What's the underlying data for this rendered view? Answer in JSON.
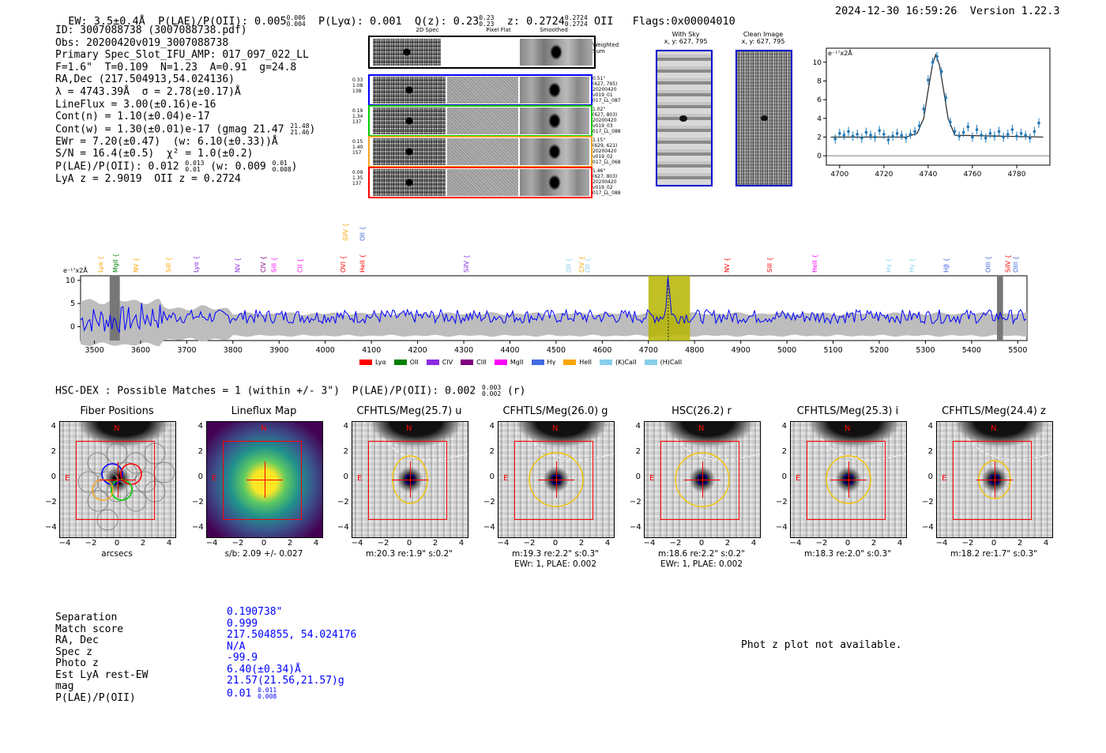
{
  "header": {
    "ew": "EW: 3.5±0.4Å",
    "plae_label": "P(LAE)/P(OII): 0.005",
    "plae_hi": "0.006",
    "plae_lo": "0.004",
    "plya": "P(Lyα): 0.001",
    "qz_label": "Q(z): 0.23",
    "qz_hi": "0.23",
    "qz_lo": "0.23",
    "z_label": "z: 0.2724",
    "z_hi": "0.2724",
    "z_lo": "0.2724",
    "z_line": "OII",
    "flags": "Flags:0x00004010",
    "timestamp": "2024-12-30 16:59:26",
    "version": "Version 1.22.3"
  },
  "info": {
    "id": "ID: 3007088738 (3007088738.pdf)",
    "obs": "Obs: 20200420v019_3007088738",
    "primary": "Primary Spec_Slot_IFU_AMP: 017_097_022_LL",
    "fshape": "F=1.6\"  T=0.109  N=1.23  A=0.91  g=24.8",
    "radec": "RA,Dec (217.504913,54.024136)",
    "lambda": "λ = 4743.39Å  σ = 2.78(±0.17)Å",
    "lineflux": "LineFlux = 3.00(±0.16)e-16",
    "contn": "Cont(n) = 1.10(±0.04)e-17",
    "contw": "Cont(w) = 1.30(±0.01)e-17 (gmag 21.47",
    "contw_hi": "21.48",
    "contw_lo": "21.46",
    "contw_end": ")",
    "ewr": "EWr = 7.20(±0.47)  (w: 6.10(±0.33))Å",
    "sn": "S/N = 16.4(±0.5)  χ² = 1.0(±0.2)",
    "plae": "P(LAE)/P(OII): 0.012",
    "plae_hi": "0.013",
    "plae_lo": "0.01",
    "plae_w": "(w: 0.009",
    "plae_w_hi": "0.01",
    "plae_w_lo": "0.008",
    "plae_end": ")",
    "lya_z": "LyA z = 2.9019  OII z = 0.2724"
  },
  "cutouts": {
    "col_headers": [
      "2D Spec",
      "Pixel Flat",
      "Smoothed"
    ],
    "weighted_sum": "Weighted Sum",
    "rows": [
      {
        "left": "0.33\n1.08\n138",
        "right": "0.51\"\n(627, 795)\n20200420\nv019_01\n017_LL_087",
        "color": "#0000ff"
      },
      {
        "left": "0.19\n1.34\n137",
        "right": "1.02\"\n(627, 803)\n20200420\nv019_03\n017_LL_088",
        "color": "#00cc00"
      },
      {
        "left": "0.15\n1.40\n157",
        "right": "1.15\"\n(629, 621)\n20200420\nv019_02\n017_LL_068",
        "color": "#f5a623"
      },
      {
        "left": "0.09\n1.35\n137",
        "right": "1.46\"\n(627, 803)\n20200420\nv019_02\n017_LL_088",
        "color": "#ff0000"
      }
    ],
    "with_sky": "With Sky",
    "with_sky_xy": "x, y: 627, 795",
    "clean": "Clean Image",
    "clean_xy": "x, y: 627, 795"
  },
  "chart_data": [
    {
      "type": "line",
      "title": "",
      "ylabel": "e⁻¹⁷x2Å",
      "xlabel": "",
      "xlim": [
        4694,
        4795
      ],
      "ylim": [
        -1,
        11.5
      ],
      "xticks": [
        4700,
        4720,
        4740,
        4760,
        4780
      ],
      "yticks": [
        0,
        2,
        4,
        6,
        8,
        10
      ],
      "series": [
        {
          "name": "fit",
          "x": [
            4696,
            4730,
            4735,
            4738,
            4740,
            4742,
            4743.4,
            4745,
            4747,
            4749,
            4752,
            4792
          ],
          "y": [
            2,
            2,
            2.4,
            4,
            7,
            9.8,
            10.8,
            9.8,
            7,
            4,
            2.2,
            2
          ]
        },
        {
          "name": "data",
          "x": [
            4698,
            4700,
            4702,
            4704,
            4706,
            4708,
            4710,
            4712,
            4714,
            4716,
            4718,
            4720,
            4722,
            4724,
            4726,
            4728,
            4730,
            4732,
            4734,
            4736,
            4738,
            4740,
            4742,
            4744,
            4746,
            4748,
            4750,
            4752,
            4754,
            4756,
            4758,
            4760,
            4762,
            4764,
            4766,
            4768,
            4770,
            4772,
            4774,
            4776,
            4778,
            4780,
            4782,
            4784,
            4786,
            4788,
            4790
          ],
          "y": [
            1.8,
            2.4,
            2.2,
            2.6,
            2.1,
            2.3,
            1.9,
            2.5,
            2.2,
            2.0,
            2.7,
            2.3,
            1.7,
            2.1,
            2.4,
            2.2,
            1.9,
            2.3,
            2.6,
            3.2,
            5.0,
            8.1,
            10.0,
            10.6,
            9.0,
            6.2,
            3.6,
            2.6,
            2.1,
            2.5,
            3.1,
            2.0,
            2.8,
            2.2,
            1.9,
            2.4,
            2.1,
            2.6,
            2.0,
            2.3,
            2.8,
            2.1,
            2.4,
            2.2,
            1.9,
            2.6,
            3.5
          ]
        }
      ]
    },
    {
      "type": "line",
      "ylabel": "e⁻¹⁷x2Å",
      "xlim": [
        3470,
        5520
      ],
      "ylim": [
        -3,
        11
      ],
      "xticks": [
        3500,
        3600,
        3700,
        3800,
        3900,
        4000,
        4100,
        4200,
        4300,
        4400,
        4500,
        4600,
        4700,
        4800,
        4900,
        5000,
        5100,
        5200,
        5300,
        5400,
        5500
      ],
      "yticks": [
        0,
        5,
        10
      ],
      "highlight_range": [
        4700,
        4790
      ],
      "line_marker": 4743,
      "legend": [
        "Lyα",
        "OII",
        "CIV",
        "CIII",
        "MgII",
        "Hγ",
        "HeII",
        "(K)CaII",
        "(H)CaII"
      ],
      "legend_colors": [
        "#ff0000",
        "#008000",
        "#8a2be2",
        "#800080",
        "#ff00ff",
        "#4169e1",
        "#ffa500",
        "#87ceeb",
        "#87ceeb"
      ],
      "line_labels": [
        {
          "label": "Lyα",
          "x": 3513,
          "color": "#ffa500"
        },
        {
          "label": "MgII",
          "x": 3545,
          "color": "#008000"
        },
        {
          "label": "NV",
          "x": 3590,
          "color": "#ffa500"
        },
        {
          "label": "SiII",
          "x": 3660,
          "color": "#ffa500"
        },
        {
          "label": "Lyα",
          "x": 3720,
          "color": "#8a2be2"
        },
        {
          "label": "NV",
          "x": 3810,
          "color": "#8a2be2"
        },
        {
          "label": "CIV",
          "x": 3865,
          "color": "#800080"
        },
        {
          "label": "SiII",
          "x": 3888,
          "color": "#ff00ff"
        },
        {
          "label": "CII",
          "x": 3945,
          "color": "#ff00ff"
        },
        {
          "label": "OVI",
          "x": 4038,
          "color": "#ff0000"
        },
        {
          "label": "HeII",
          "x": 4080,
          "color": "#ff0000"
        },
        {
          "label": "SiIV",
          "x": 4305,
          "color": "#8a2be2"
        },
        {
          "label": "OII",
          "x": 4527,
          "color": "#87ceeb"
        },
        {
          "label": "CIV",
          "x": 4555,
          "color": "#ffa500"
        },
        {
          "label": "OII",
          "x": 4568,
          "color": "#87ceeb"
        },
        {
          "label": "NV",
          "x": 4870,
          "color": "#ff0000"
        },
        {
          "label": "SiII",
          "x": 4962,
          "color": "#ff0000"
        },
        {
          "label": "HeII",
          "x": 5060,
          "color": "#ff00ff"
        },
        {
          "label": "Hγ",
          "x": 5220,
          "color": "#87ceeb"
        },
        {
          "label": "Hγ",
          "x": 5270,
          "color": "#87ceeb"
        },
        {
          "label": "Hβ",
          "x": 5345,
          "color": "#4169e1"
        },
        {
          "label": "OIII",
          "x": 5435,
          "color": "#4169e1"
        },
        {
          "label": "SiIV",
          "x": 5478,
          "color": "#ff0000"
        },
        {
          "label": "OIII",
          "x": 5495,
          "color": "#4169e1"
        }
      ],
      "top_labels": [
        {
          "label": "SiIV",
          "x": 4043,
          "color": "#ffa500"
        },
        {
          "label": "OII",
          "x": 4080,
          "color": "#4169e1"
        }
      ]
    }
  ],
  "hsc": {
    "title": "HSC-DEX : Possible Matches = 1 (within +/- 3\")  P(LAE)/P(OII): 0.002",
    "plae_hi": "0.003",
    "plae_lo": "0.002",
    "plae_end": "(r)"
  },
  "panels": [
    {
      "title": "Fiber Positions",
      "xlabel": "arcsecs",
      "note1": "",
      "note2": ""
    },
    {
      "title": "Lineflux Map",
      "xlabel": "s/b: 2.09 +/- 0.027",
      "note1": "",
      "note2": ""
    },
    {
      "title": "CFHTLS/Meg(25.7) u",
      "xlabel": "m:20.3  re:1.9\"  s:0.2\"",
      "note1": "",
      "note2": ""
    },
    {
      "title": "CFHTLS/Meg(26.0) g",
      "xlabel": "m:19.3  re:2.2\"  s:0.3\"",
      "note1": "EWr: 1, PLAE: 0.002",
      "note2": ""
    },
    {
      "title": "HSC(26.2) r",
      "xlabel": "m:18.6  re:2.2\"  s:0.2\"",
      "note1": "EWr: 1, PLAE: 0.002",
      "note2": ""
    },
    {
      "title": "CFHTLS/Meg(25.3) i",
      "xlabel": "m:18.3  re:2.0\"  s:0.3\"",
      "note1": "",
      "note2": ""
    },
    {
      "title": "CFHTLS/Meg(24.4) z",
      "xlabel": "m:18.2  re:1.7\"  s:0.3\"",
      "note1": "",
      "note2": ""
    }
  ],
  "panel_ticks": {
    "x": [
      "−4",
      "−2",
      "0",
      "2",
      "4"
    ],
    "y": [
      "4",
      "2",
      "0",
      "−2",
      "−4"
    ],
    "north": "N",
    "east": "E"
  },
  "separation": {
    "labels": [
      "Separation",
      "Match score",
      "RA, Dec",
      "Spec z",
      "Photo z",
      "Est LyA rest-EW",
      "mag",
      "P(LAE)/P(OII)"
    ],
    "values": [
      "0.190738\"",
      "0.999",
      "217.504855, 54.024176",
      "N/A",
      "-99.9",
      "6.40(±0.34)Å",
      "21.57(21.56,21.57)g",
      "0.01"
    ],
    "plae_hi": "0.011",
    "plae_lo": "0.008"
  },
  "photz_note": "Phot z plot not available."
}
